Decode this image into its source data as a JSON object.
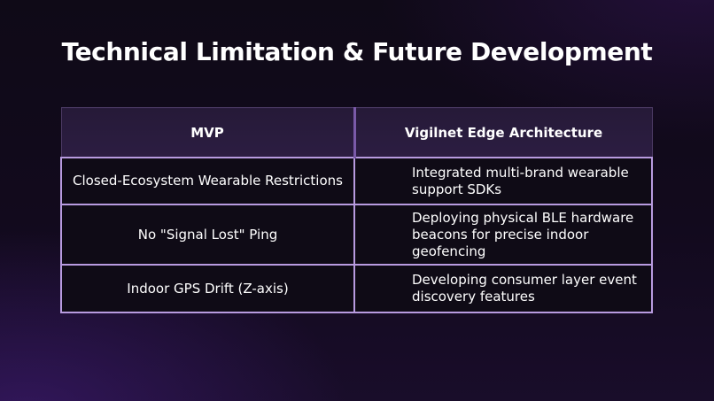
{
  "slide": {
    "title": "Technical Limitation & Future Development"
  },
  "table": {
    "headers": [
      "MVP",
      "Vigilnet Edge Architecture"
    ],
    "rows": [
      {
        "mvp": "Closed-Ecosystem Wearable Restrictions",
        "edge": "Integrated multi-brand wearable support SDKs"
      },
      {
        "mvp": "No \"Signal Lost\" Ping",
        "edge": "Deploying physical BLE hardware beacons for precise indoor geofencing"
      },
      {
        "mvp": "Indoor GPS Drift (Z-axis)",
        "edge": "Developing consumer layer event discovery features"
      }
    ]
  },
  "colors": {
    "background": "#120a1d",
    "header_fill": "#2c1d42",
    "cell_border": "#b89be0",
    "text": "#ffffff"
  }
}
